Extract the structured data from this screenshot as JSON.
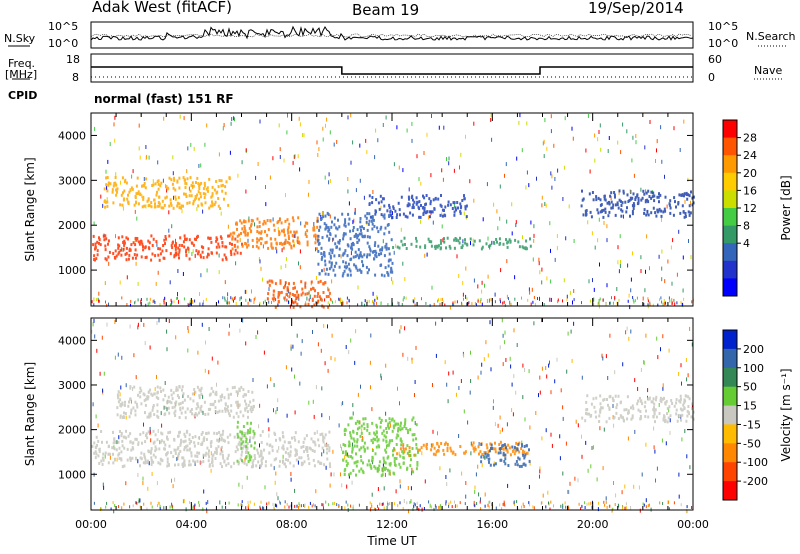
{
  "header": {
    "station": "Adak West (fitACF)",
    "beam": "Beam 19",
    "date": "19/Sep/2014"
  },
  "labels": {
    "nsky": "N.Sky",
    "nsearch": "N.Search",
    "freq": "Freq.",
    "freq_unit": "[MHz]",
    "nave": "Nave",
    "cpid": "CPID",
    "mode": "normal (fast) 151 RF",
    "noise_ticks": [
      "10^5",
      "10^0"
    ],
    "freq_ticks": [
      "18",
      "8"
    ],
    "nave_ticks": [
      "60",
      "0"
    ]
  },
  "chart_data": [
    {
      "type": "heatmap",
      "panel": "power",
      "xlabel": "",
      "ylabel": "Slant Range [km]",
      "x_range_hours": [
        0,
        24
      ],
      "ylim": [
        200,
        4500
      ],
      "y_ticks": [
        1000,
        2000,
        3000,
        4000
      ],
      "colorbar": {
        "label": "Power [dB]",
        "ticks": [
          "28",
          "24",
          "20",
          "16",
          "12",
          "8",
          "4"
        ],
        "colors": [
          "#ff0000",
          "#ff5500",
          "#ff9900",
          "#ffcc00",
          "#ccdd00",
          "#44cc44",
          "#339966",
          "#3366bb",
          "#2233cc",
          "#0000ff"
        ]
      },
      "regions": [
        {
          "t0": 0.0,
          "t1": 6.0,
          "r0": 1250,
          "r1": 1800,
          "color": "#ff3300"
        },
        {
          "t0": 5.5,
          "t1": 9.0,
          "r0": 1500,
          "r1": 2200,
          "color": "#ff7700"
        },
        {
          "t0": 0.5,
          "t1": 5.5,
          "r0": 2400,
          "r1": 3100,
          "color": "#ffaa00"
        },
        {
          "t0": 9.0,
          "t1": 12.0,
          "r0": 900,
          "r1": 2300,
          "color": "#3366bb"
        },
        {
          "t0": 12.0,
          "t1": 17.5,
          "r0": 1500,
          "r1": 1750,
          "color": "#339966"
        },
        {
          "t0": 11.0,
          "t1": 15.0,
          "r0": 2200,
          "r1": 2700,
          "color": "#2244bb"
        },
        {
          "t0": 19.5,
          "t1": 24.0,
          "r0": 2200,
          "r1": 2800,
          "color": "#2244aa"
        },
        {
          "t0": 7.0,
          "t1": 9.5,
          "r0": 200,
          "r1": 800,
          "color": "#ff5500"
        }
      ]
    },
    {
      "type": "heatmap",
      "panel": "velocity",
      "xlabel": "Time UT",
      "ylabel": "Slant Range [km]",
      "x_range_hours": [
        0,
        24
      ],
      "x_ticks": [
        "00:00",
        "04:00",
        "08:00",
        "12:00",
        "16:00",
        "20:00",
        "00:00"
      ],
      "ylim": [
        200,
        4500
      ],
      "y_ticks": [
        1000,
        2000,
        3000,
        4000
      ],
      "colorbar": {
        "label": "Velocity [m s⁻¹]",
        "ticks": [
          "200",
          "100",
          "50",
          "15",
          "-15",
          "-50",
          "-100",
          "-200"
        ],
        "colors": [
          "#0022cc",
          "#3366aa",
          "#338855",
          "#66cc33",
          "#c8c8c0",
          "#ffbb00",
          "#ff8800",
          "#ff4400",
          "#ff0000"
        ]
      },
      "regions": [
        {
          "t0": 0.0,
          "t1": 9.5,
          "r0": 1200,
          "r1": 2000,
          "color": "#c8c8c0"
        },
        {
          "t0": 1.0,
          "t1": 6.5,
          "r0": 2300,
          "r1": 3000,
          "color": "#c8c8c0"
        },
        {
          "t0": 5.8,
          "t1": 6.5,
          "r0": 1300,
          "r1": 2200,
          "color": "#66cc33"
        },
        {
          "t0": 12.0,
          "t1": 17.5,
          "r0": 1450,
          "r1": 1750,
          "color": "#ff8800"
        },
        {
          "t0": 15.5,
          "t1": 17.5,
          "r0": 1200,
          "r1": 1700,
          "color": "#3366aa"
        },
        {
          "t0": 10.0,
          "t1": 13.0,
          "r0": 1000,
          "r1": 2300,
          "color": "#66cc33"
        },
        {
          "t0": 19.5,
          "t1": 24.0,
          "r0": 2200,
          "r1": 2800,
          "color": "#c8c8c0"
        }
      ]
    }
  ],
  "colors": {
    "frame": "#000000"
  }
}
